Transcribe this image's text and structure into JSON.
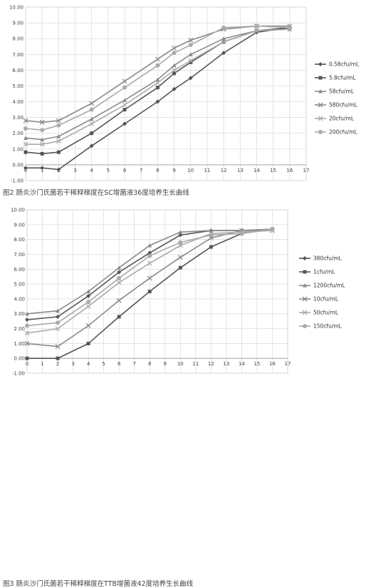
{
  "chart_data": [
    {
      "type": "line",
      "caption": "图2 肠炎沙门氏菌若干稀释梯度在SC增菌液36度培养生长曲线",
      "xlim": [
        0,
        17
      ],
      "ylim": [
        -1.0,
        10.0
      ],
      "x_ticks": [
        "0",
        "1",
        "2",
        "3",
        "4",
        "5",
        "6",
        "7",
        "8",
        "9",
        "10",
        "11",
        "12",
        "13",
        "14",
        "15",
        "16",
        "17"
      ],
      "y_ticks": [
        "-1.00",
        "0.00",
        "1.00",
        "2.00",
        "3.00",
        "4.00",
        "5.00",
        "6.00",
        "7.00",
        "8.00",
        "9.00",
        "10.00"
      ],
      "grid": true,
      "legend_position": "right",
      "series": [
        {
          "name": "0.58cfu/mL",
          "marker": "diamond",
          "color": "#555555",
          "x": [
            0,
            1,
            2,
            4,
            6,
            8,
            9,
            10,
            12,
            14,
            16
          ],
          "y": [
            -0.2,
            -0.2,
            -0.3,
            1.2,
            2.6,
            4.0,
            4.8,
            5.5,
            7.1,
            8.4,
            8.7
          ]
        },
        {
          "name": "5.8cfu/mL",
          "marker": "square",
          "color": "#555555",
          "x": [
            0,
            1,
            2,
            4,
            6,
            8,
            9,
            10,
            12,
            14,
            16
          ],
          "y": [
            0.8,
            0.7,
            0.8,
            2.0,
            3.5,
            4.9,
            5.8,
            6.5,
            7.8,
            8.5,
            8.7
          ]
        },
        {
          "name": "58cfu/mL",
          "marker": "triangle",
          "color": "#8a8a8a",
          "x": [
            0,
            1,
            2,
            4,
            6,
            8,
            9,
            10,
            12,
            14,
            16
          ],
          "y": [
            1.7,
            1.6,
            1.8,
            2.9,
            4.1,
            5.4,
            6.3,
            7.0,
            8.0,
            8.5,
            8.6
          ]
        },
        {
          "name": "580cfu/mL",
          "marker": "x",
          "color": "#8a8a8a",
          "x": [
            0,
            1,
            2,
            4,
            6,
            8,
            9,
            10,
            12,
            14,
            16
          ],
          "y": [
            2.8,
            2.7,
            2.8,
            3.9,
            5.3,
            6.7,
            7.4,
            7.9,
            8.6,
            8.8,
            8.8
          ]
        },
        {
          "name": "20cfu/mL",
          "marker": "x",
          "color": "#aaaaaa",
          "x": [
            0,
            1,
            2,
            4,
            6,
            8,
            9,
            10,
            12,
            14,
            16
          ],
          "y": [
            1.3,
            1.3,
            1.5,
            2.6,
            3.8,
            5.2,
            6.0,
            6.6,
            7.8,
            8.5,
            8.6
          ]
        },
        {
          "name": "200cfu/mL",
          "marker": "circle",
          "color": "#aaaaaa",
          "x": [
            0,
            1,
            2,
            4,
            6,
            8,
            9,
            10,
            12,
            14,
            16
          ],
          "y": [
            2.3,
            2.2,
            2.5,
            3.5,
            4.9,
            6.3,
            7.1,
            7.6,
            8.7,
            8.8,
            8.7
          ]
        }
      ]
    },
    {
      "type": "line",
      "caption": "图3 肠炎沙门氏菌若干稀释梯度在TTB增菌液42度培养生长曲线",
      "xlim": [
        0,
        17
      ],
      "ylim": [
        -1.0,
        10.0
      ],
      "x_ticks": [
        "0",
        "1",
        "2",
        "3",
        "4",
        "5",
        "6",
        "7",
        "8",
        "9",
        "10",
        "11",
        "12",
        "13",
        "14",
        "15",
        "16",
        "17"
      ],
      "y_ticks": [
        "-1.00",
        "0.00",
        "1.00",
        "2.00",
        "3.00",
        "4.00",
        "5.00",
        "6.00",
        "7.00",
        "8.00",
        "9.00",
        "10.00"
      ],
      "grid": true,
      "legend_position": "right",
      "series": [
        {
          "name": "380cfu/mL",
          "marker": "diamond",
          "color": "#555555",
          "x": [
            0,
            2,
            4,
            6,
            8,
            10,
            12,
            14,
            16
          ],
          "y": [
            2.6,
            2.8,
            4.2,
            5.8,
            7.1,
            8.3,
            8.6,
            8.6,
            8.7
          ]
        },
        {
          "name": "1cfu/mL",
          "marker": "square",
          "color": "#555555",
          "x": [
            0,
            2,
            4,
            6,
            8,
            10,
            12,
            14,
            16
          ],
          "y": [
            0.0,
            0.0,
            1.0,
            2.8,
            4.5,
            6.1,
            7.5,
            8.4,
            8.7
          ]
        },
        {
          "name": "1200cfu/mL",
          "marker": "triangle",
          "color": "#8a8a8a",
          "x": [
            0,
            2,
            4,
            6,
            8,
            10,
            12,
            14,
            16
          ],
          "y": [
            3.0,
            3.2,
            4.5,
            6.1,
            7.6,
            8.5,
            8.6,
            8.6,
            8.7
          ]
        },
        {
          "name": "10cfu/mL",
          "marker": "x",
          "color": "#8a8a8a",
          "x": [
            0,
            2,
            4,
            6,
            8,
            10,
            12,
            14,
            16
          ],
          "y": [
            1.0,
            0.8,
            2.2,
            3.9,
            5.4,
            6.8,
            8.1,
            8.6,
            8.6
          ]
        },
        {
          "name": "50cfu/mL",
          "marker": "x",
          "color": "#aaaaaa",
          "x": [
            0,
            2,
            4,
            6,
            8,
            10,
            12,
            14,
            16
          ],
          "y": [
            1.7,
            2.0,
            3.5,
            5.1,
            6.4,
            7.6,
            8.4,
            8.5,
            8.6
          ]
        },
        {
          "name": "150cfu/mL",
          "marker": "circle",
          "color": "#aaaaaa",
          "x": [
            0,
            2,
            4,
            6,
            8,
            10,
            12,
            14,
            16
          ],
          "y": [
            2.2,
            2.4,
            3.8,
            5.4,
            6.9,
            7.8,
            8.3,
            8.4,
            8.7
          ]
        }
      ]
    }
  ]
}
